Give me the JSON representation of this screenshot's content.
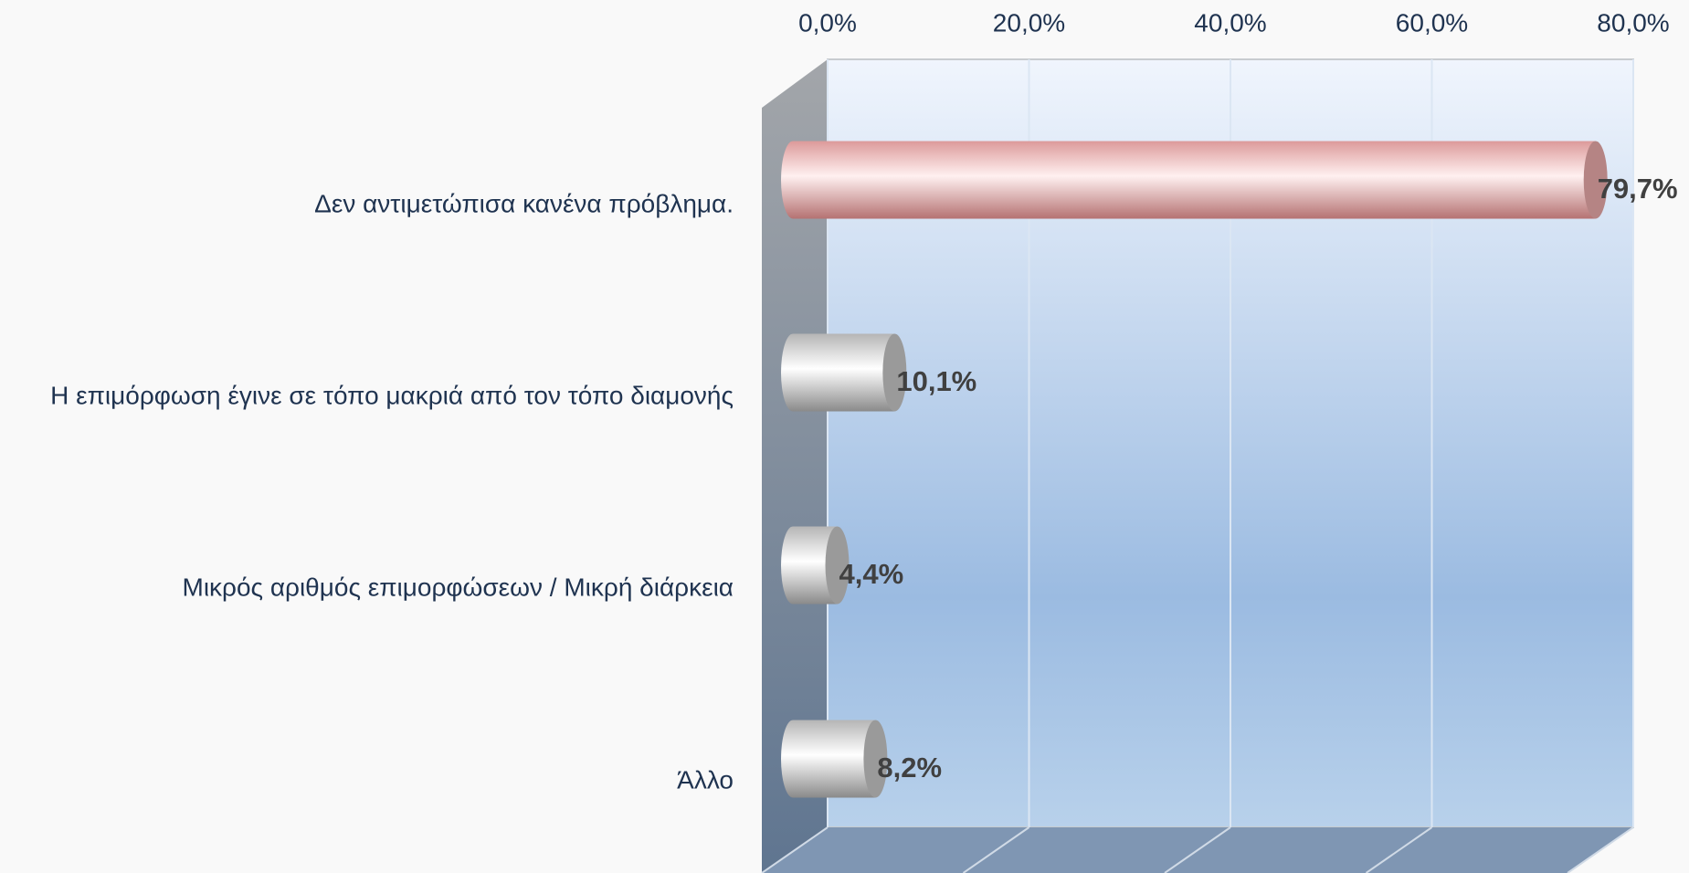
{
  "chart_data": {
    "type": "bar",
    "orientation": "horizontal",
    "categories": [
      "Δεν αντιμετώπισα κανένα πρόβλημα.",
      "Η επιμόρφωση έγινε σε τόπο μακριά από τον τόπο διαμονής",
      "Μικρός αριθμός επιμορφώσεων / Μικρή διάρκεια",
      "Άλλο"
    ],
    "values": [
      79.7,
      10.1,
      4.4,
      8.2
    ],
    "value_labels": [
      "79,7%",
      "10,1%",
      "4,4%",
      "8,2%"
    ],
    "colors": [
      "pink",
      "gray",
      "gray",
      "gray"
    ],
    "xlim": [
      0,
      80
    ],
    "xticks": [
      {
        "value": 0,
        "label": "0,0%"
      },
      {
        "value": 20,
        "label": "20,0%"
      },
      {
        "value": 40,
        "label": "40,0%"
      },
      {
        "value": 60,
        "label": "60,0%"
      },
      {
        "value": 80,
        "label": "80,0%"
      }
    ],
    "grid": true
  }
}
